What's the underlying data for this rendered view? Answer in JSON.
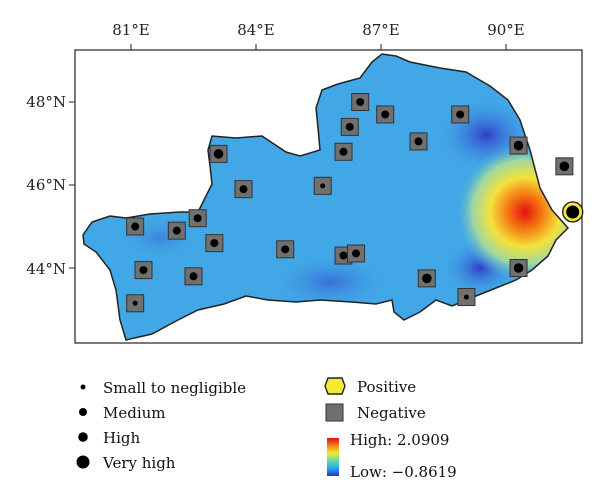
{
  "axes": {
    "longitude_labels": [
      "81°E",
      "84°E",
      "87°E",
      "90°E"
    ],
    "latitude_labels": [
      "48°N",
      "46°N",
      "44°N"
    ]
  },
  "colors": {
    "background": "#41a7e6",
    "low": "#3a2bd0",
    "high": "#e01010",
    "negative_marker": "#707070",
    "positive_marker": "#f4ea35"
  },
  "legend": {
    "size_classes": [
      {
        "label": "Small to negligible",
        "size": "small"
      },
      {
        "label": "Medium",
        "size": "medium"
      },
      {
        "label": "High",
        "size": "high"
      },
      {
        "label": "Very high",
        "size": "very-high"
      }
    ],
    "types": [
      {
        "label": "Positive",
        "color": "#f4ea35"
      },
      {
        "label": "Negative",
        "color": "#707070"
      }
    ],
    "colorbar": {
      "high_label": "High: 2.0909",
      "low_label": "Low: −0.8619",
      "high_value": 2.0909,
      "low_value": -0.8619
    }
  },
  "stations": [
    {
      "lon": 81.1,
      "lat": 45.0,
      "type": "negative",
      "size": "medium"
    },
    {
      "lon": 82.1,
      "lat": 44.9,
      "type": "negative",
      "size": "medium"
    },
    {
      "lon": 82.6,
      "lat": 45.2,
      "type": "negative",
      "size": "medium"
    },
    {
      "lon": 83.0,
      "lat": 44.6,
      "type": "negative",
      "size": "medium"
    },
    {
      "lon": 81.3,
      "lat": 43.95,
      "type": "negative",
      "size": "medium"
    },
    {
      "lon": 82.5,
      "lat": 43.8,
      "type": "negative",
      "size": "medium"
    },
    {
      "lon": 81.1,
      "lat": 43.15,
      "type": "negative",
      "size": "small"
    },
    {
      "lon": 83.1,
      "lat": 46.75,
      "type": "negative",
      "size": "high"
    },
    {
      "lon": 83.7,
      "lat": 45.9,
      "type": "negative",
      "size": "medium"
    },
    {
      "lon": 84.7,
      "lat": 44.45,
      "type": "negative",
      "size": "medium"
    },
    {
      "lon": 85.6,
      "lat": 45.98,
      "type": "negative",
      "size": "small"
    },
    {
      "lon": 86.1,
      "lat": 46.8,
      "type": "negative",
      "size": "medium"
    },
    {
      "lon": 86.25,
      "lat": 47.4,
      "type": "negative",
      "size": "medium"
    },
    {
      "lon": 86.5,
      "lat": 48.0,
      "type": "negative",
      "size": "medium"
    },
    {
      "lon": 87.1,
      "lat": 47.7,
      "type": "negative",
      "size": "medium"
    },
    {
      "lon": 87.9,
      "lat": 47.05,
      "type": "negative",
      "size": "medium"
    },
    {
      "lon": 88.9,
      "lat": 47.7,
      "type": "negative",
      "size": "medium"
    },
    {
      "lon": 86.1,
      "lat": 44.3,
      "type": "negative",
      "size": "medium"
    },
    {
      "lon": 86.4,
      "lat": 44.35,
      "type": "negative",
      "size": "medium"
    },
    {
      "lon": 88.1,
      "lat": 43.75,
      "type": "negative",
      "size": "high"
    },
    {
      "lon": 89.05,
      "lat": 43.3,
      "type": "negative",
      "size": "small"
    },
    {
      "lon": 90.3,
      "lat": 44.0,
      "type": "negative",
      "size": "high"
    },
    {
      "lon": 90.3,
      "lat": 46.95,
      "type": "negative",
      "size": "high"
    },
    {
      "lon": 91.4,
      "lat": 46.45,
      "type": "negative",
      "size": "high"
    },
    {
      "lon": 91.6,
      "lat": 45.35,
      "type": "positive",
      "size": "very-high"
    }
  ]
}
